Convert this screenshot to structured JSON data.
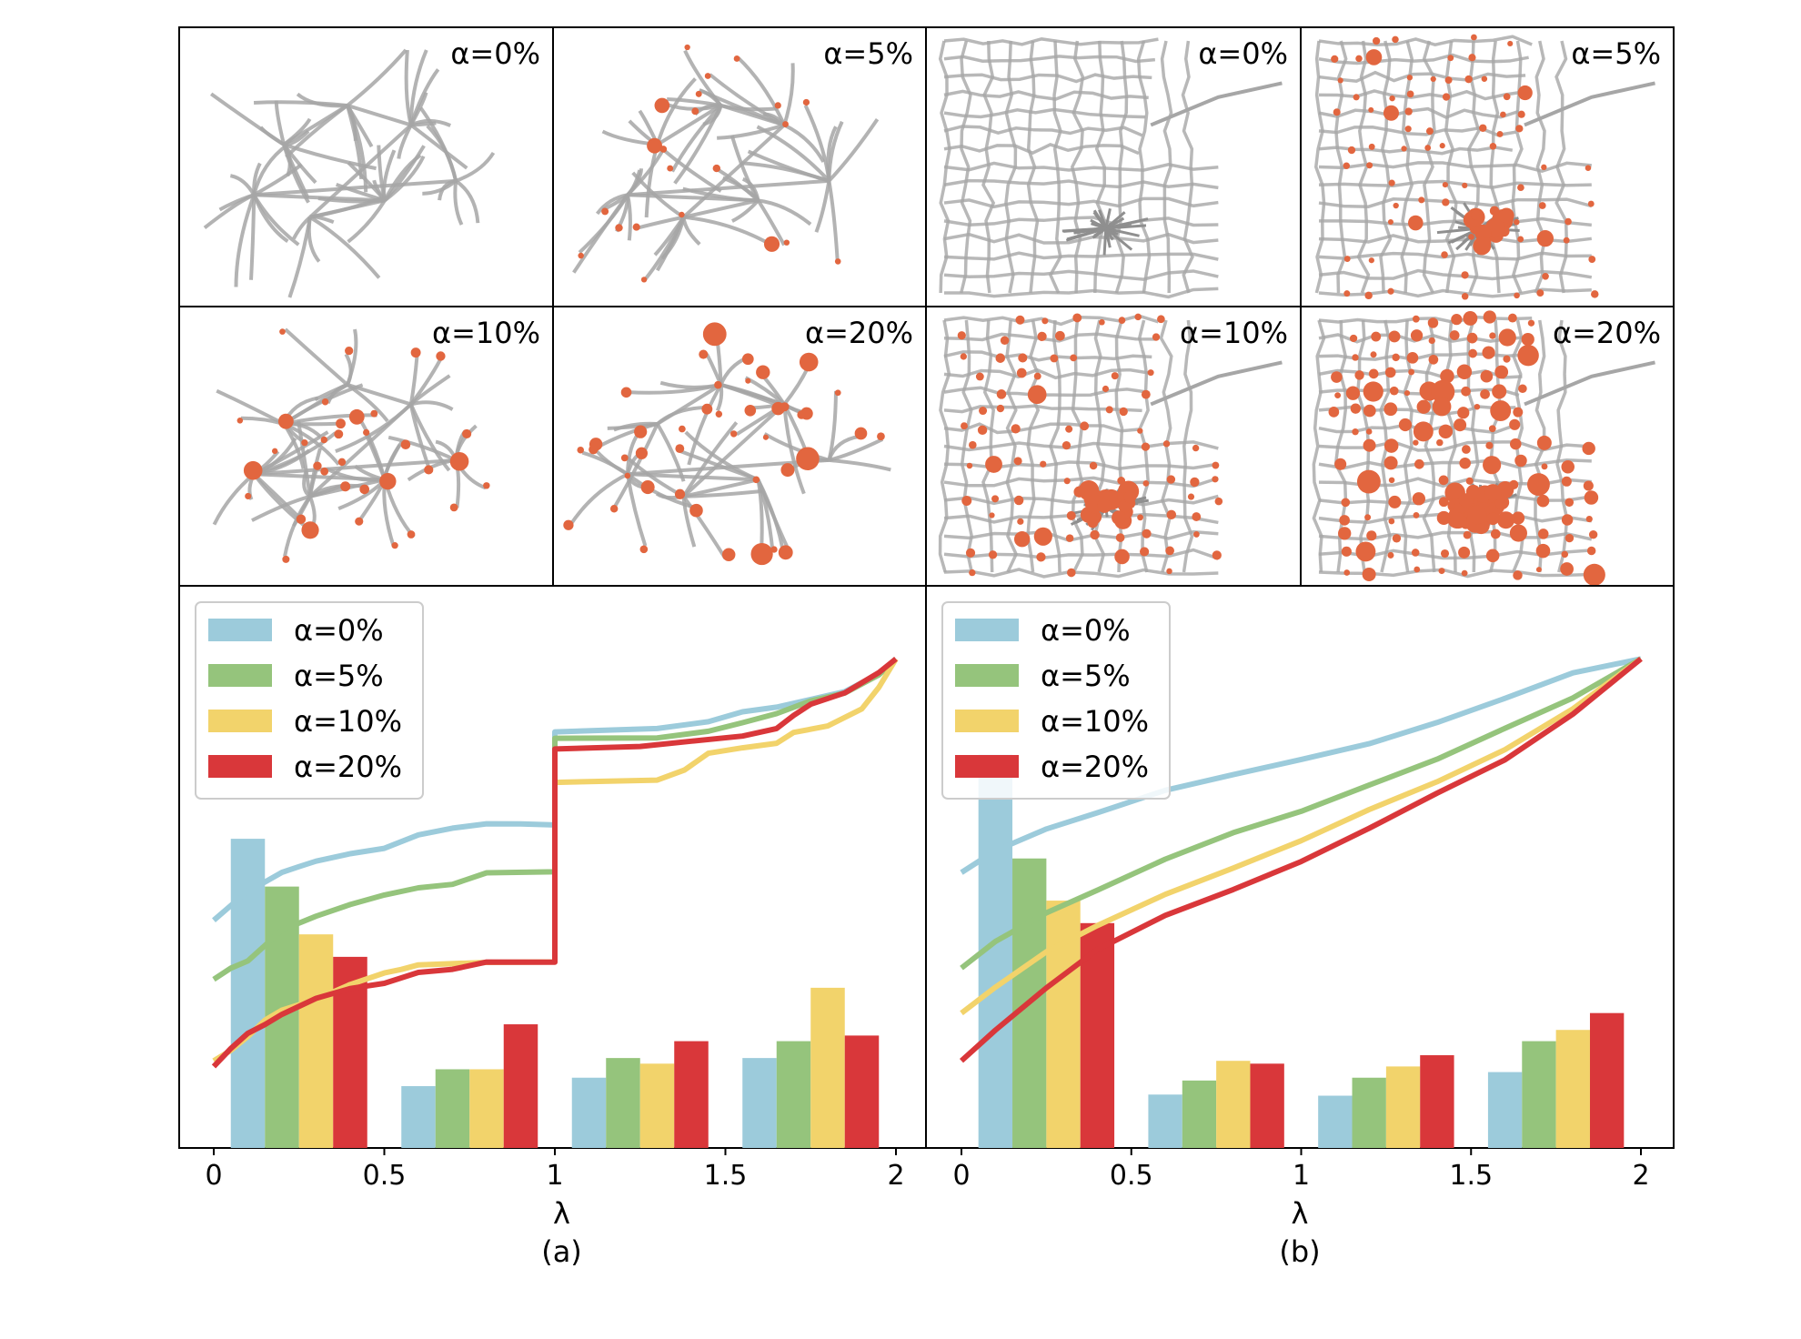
{
  "colors": {
    "alpha_0": "#9ccbdb",
    "alpha_5": "#95c47c",
    "alpha_10": "#f2d36b",
    "alpha_20": "#d9373a",
    "network_edge": "#a6a6a6",
    "network_node": "#e2663f"
  },
  "network_panels": [
    {
      "id": "left-alpha-0",
      "label": "α=0%",
      "net": "tree",
      "alpha": 0
    },
    {
      "id": "left-alpha-5",
      "label": "α=5%",
      "net": "tree",
      "alpha": 5
    },
    {
      "id": "right-alpha-0",
      "label": "α=0%",
      "net": "grid",
      "alpha": 0
    },
    {
      "id": "right-alpha-5",
      "label": "α=5%",
      "net": "grid",
      "alpha": 5
    },
    {
      "id": "left-alpha-10",
      "label": "α=10%",
      "net": "tree",
      "alpha": 10
    },
    {
      "id": "left-alpha-20",
      "label": "α=20%",
      "net": "tree",
      "alpha": 20
    },
    {
      "id": "right-alpha-10",
      "label": "α=10%",
      "net": "grid",
      "alpha": 10
    },
    {
      "id": "right-alpha-20",
      "label": "α=20%",
      "net": "grid",
      "alpha": 20
    }
  ],
  "chart_data": [
    {
      "type": "bar",
      "panel_label": "(a)",
      "xlabel": "λ",
      "ylabel": "",
      "xlim": [
        0,
        2
      ],
      "ylim": [
        0,
        1
      ],
      "xticks": [
        0,
        0.5,
        1,
        1.5,
        2
      ],
      "xtick_labels": [
        "0",
        "0.5",
        "1",
        "1.5",
        "2"
      ],
      "legend": {
        "position": "top-left",
        "entries": [
          "α=0%",
          "α=5%",
          "α=10%",
          "α=20%"
        ]
      },
      "bar_groups": [
        0.0,
        0.5,
        1.0,
        1.5
      ],
      "bar_width": 0.1,
      "series": [
        {
          "name": "α=0%",
          "bars": [
            0.55,
            0.11,
            0.125,
            0.16
          ],
          "cdf": [
            [
              0,
              0.405
            ],
            [
              0.05,
              0.43
            ],
            [
              0.1,
              0.455
            ],
            [
              0.15,
              0.475
            ],
            [
              0.2,
              0.49
            ],
            [
              0.25,
              0.5
            ],
            [
              0.3,
              0.51
            ],
            [
              0.4,
              0.525
            ],
            [
              0.5,
              0.535
            ],
            [
              0.6,
              0.555
            ],
            [
              0.7,
              0.57
            ],
            [
              0.8,
              0.575
            ],
            [
              0.9,
              0.575
            ],
            [
              1.0,
              0.575
            ],
            [
              1.0,
              0.74
            ],
            [
              1.3,
              0.745
            ],
            [
              1.45,
              0.76
            ],
            [
              1.55,
              0.775
            ],
            [
              1.65,
              0.785
            ],
            [
              1.75,
              0.8
            ],
            [
              1.85,
              0.81
            ],
            [
              1.95,
              0.845
            ],
            [
              2.0,
              0.87
            ]
          ]
        },
        {
          "name": "α=5%",
          "bars": [
            0.465,
            0.14,
            0.16,
            0.19
          ],
          "cdf": [
            [
              0,
              0.3
            ],
            [
              0.05,
              0.32
            ],
            [
              0.1,
              0.335
            ],
            [
              0.15,
              0.36
            ],
            [
              0.2,
              0.39
            ],
            [
              0.3,
              0.41
            ],
            [
              0.4,
              0.435
            ],
            [
              0.5,
              0.45
            ],
            [
              0.6,
              0.465
            ],
            [
              0.7,
              0.47
            ],
            [
              0.8,
              0.49
            ],
            [
              1.0,
              0.49
            ],
            [
              1.0,
              0.728
            ],
            [
              1.3,
              0.73
            ],
            [
              1.45,
              0.74
            ],
            [
              1.55,
              0.755
            ],
            [
              1.65,
              0.775
            ],
            [
              1.75,
              0.795
            ],
            [
              1.85,
              0.81
            ],
            [
              1.95,
              0.84
            ],
            [
              2.0,
              0.87
            ]
          ]
        },
        {
          "name": "α=10%",
          "bars": [
            0.38,
            0.14,
            0.15,
            0.285
          ],
          "cdf": [
            [
              0,
              0.155
            ],
            [
              0.05,
              0.175
            ],
            [
              0.1,
              0.2
            ],
            [
              0.15,
              0.225
            ],
            [
              0.2,
              0.245
            ],
            [
              0.3,
              0.265
            ],
            [
              0.4,
              0.29
            ],
            [
              0.5,
              0.31
            ],
            [
              0.55,
              0.32
            ],
            [
              0.6,
              0.325
            ],
            [
              0.8,
              0.33
            ],
            [
              1.0,
              0.33
            ],
            [
              1.0,
              0.65
            ],
            [
              1.3,
              0.655
            ],
            [
              1.38,
              0.67
            ],
            [
              1.45,
              0.7
            ],
            [
              1.55,
              0.71
            ],
            [
              1.65,
              0.72
            ],
            [
              1.7,
              0.74
            ],
            [
              1.8,
              0.75
            ],
            [
              1.9,
              0.78
            ],
            [
              1.95,
              0.82
            ],
            [
              2.0,
              0.87
            ]
          ]
        },
        {
          "name": "α=20%",
          "bars": [
            0.34,
            0.22,
            0.19,
            0.2
          ],
          "cdf": [
            [
              0,
              0.145
            ],
            [
              0.05,
              0.175
            ],
            [
              0.1,
              0.205
            ],
            [
              0.15,
              0.22
            ],
            [
              0.2,
              0.24
            ],
            [
              0.3,
              0.265
            ],
            [
              0.4,
              0.285
            ],
            [
              0.5,
              0.295
            ],
            [
              0.6,
              0.31
            ],
            [
              0.7,
              0.32
            ],
            [
              0.8,
              0.33
            ],
            [
              1.0,
              0.33
            ],
            [
              1.0,
              0.71
            ],
            [
              1.25,
              0.715
            ],
            [
              1.4,
              0.725
            ],
            [
              1.55,
              0.735
            ],
            [
              1.65,
              0.745
            ],
            [
              1.7,
              0.77
            ],
            [
              1.75,
              0.79
            ],
            [
              1.85,
              0.81
            ],
            [
              1.95,
              0.845
            ],
            [
              2.0,
              0.87
            ]
          ]
        }
      ]
    },
    {
      "type": "bar",
      "panel_label": "(b)",
      "xlabel": "λ",
      "ylabel": "",
      "xlim": [
        0,
        2
      ],
      "ylim": [
        0,
        1
      ],
      "xticks": [
        0,
        0.5,
        1,
        1.5,
        2
      ],
      "xtick_labels": [
        "0",
        "0.5",
        "1",
        "1.5",
        "2"
      ],
      "legend": {
        "position": "top-left",
        "entries": [
          "α=0%",
          "α=5%",
          "α=10%",
          "α=20%"
        ]
      },
      "bar_groups": [
        0.0,
        0.5,
        1.0,
        1.5
      ],
      "bar_width": 0.1,
      "series": [
        {
          "name": "α=0%",
          "bars": [
            0.7,
            0.095,
            0.093,
            0.135
          ],
          "cdf": [
            [
              0,
              0.49
            ],
            [
              0.1,
              0.53
            ],
            [
              0.25,
              0.565
            ],
            [
              0.4,
              0.595
            ],
            [
              0.6,
              0.635
            ],
            [
              0.8,
              0.665
            ],
            [
              1.0,
              0.69
            ],
            [
              1.2,
              0.72
            ],
            [
              1.4,
              0.755
            ],
            [
              1.6,
              0.8
            ],
            [
              1.8,
              0.845
            ],
            [
              2.0,
              0.87
            ]
          ]
        },
        {
          "name": "α=5%",
          "bars": [
            0.515,
            0.12,
            0.125,
            0.19
          ],
          "cdf": [
            [
              0,
              0.32
            ],
            [
              0.1,
              0.365
            ],
            [
              0.25,
              0.42
            ],
            [
              0.4,
              0.46
            ],
            [
              0.6,
              0.515
            ],
            [
              0.8,
              0.56
            ],
            [
              1.0,
              0.6
            ],
            [
              1.2,
              0.645
            ],
            [
              1.4,
              0.69
            ],
            [
              1.6,
              0.745
            ],
            [
              1.8,
              0.8
            ],
            [
              2.0,
              0.87
            ]
          ]
        },
        {
          "name": "α=10%",
          "bars": [
            0.44,
            0.155,
            0.145,
            0.21
          ],
          "cdf": [
            [
              0,
              0.24
            ],
            [
              0.1,
              0.285
            ],
            [
              0.25,
              0.35
            ],
            [
              0.4,
              0.395
            ],
            [
              0.6,
              0.45
            ],
            [
              0.8,
              0.5
            ],
            [
              1.0,
              0.545
            ],
            [
              1.2,
              0.6
            ],
            [
              1.4,
              0.65
            ],
            [
              1.6,
              0.71
            ],
            [
              1.8,
              0.78
            ],
            [
              2.0,
              0.87
            ]
          ]
        },
        {
          "name": "α=20%",
          "bars": [
            0.4,
            0.15,
            0.165,
            0.24
          ],
          "cdf": [
            [
              0,
              0.155
            ],
            [
              0.1,
              0.21
            ],
            [
              0.25,
              0.285
            ],
            [
              0.4,
              0.355
            ],
            [
              0.6,
              0.415
            ],
            [
              0.8,
              0.46
            ],
            [
              1.0,
              0.51
            ],
            [
              1.2,
              0.57
            ],
            [
              1.4,
              0.63
            ],
            [
              1.6,
              0.69
            ],
            [
              1.8,
              0.77
            ],
            [
              2.0,
              0.87
            ]
          ]
        }
      ]
    }
  ]
}
